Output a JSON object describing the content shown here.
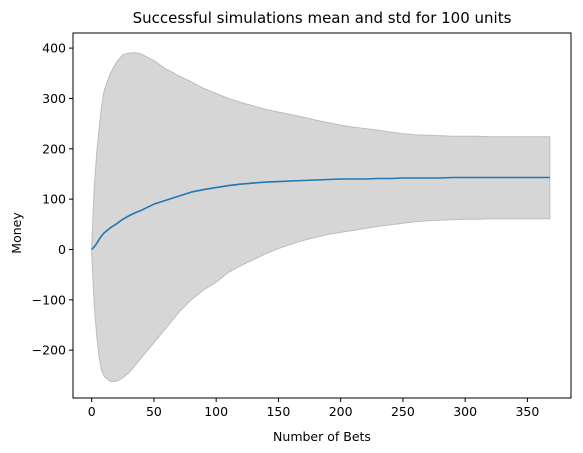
{
  "chart_data": {
    "type": "area",
    "title": "Successful simulations mean and std for 100 units",
    "xlabel": "Number of Bets",
    "ylabel": "Money",
    "xlim": [
      -15,
      385
    ],
    "ylim": [
      -295,
      430
    ],
    "xticks": [
      0,
      50,
      100,
      150,
      200,
      250,
      300,
      350
    ],
    "yticks": [
      -200,
      -100,
      0,
      100,
      200,
      300,
      400
    ],
    "x": [
      0,
      2,
      4,
      6,
      8,
      10,
      15,
      20,
      25,
      30,
      35,
      40,
      50,
      60,
      70,
      80,
      90,
      100,
      110,
      120,
      130,
      140,
      150,
      160,
      170,
      180,
      190,
      200,
      210,
      220,
      230,
      240,
      250,
      260,
      270,
      280,
      290,
      300,
      310,
      320,
      330,
      340,
      350,
      360,
      368
    ],
    "series": [
      {
        "role": "mean",
        "values": [
          0,
          5,
          12,
          20,
          27,
          33,
          43,
          51,
          60,
          67,
          73,
          78,
          90,
          98,
          106,
          114,
          119,
          123,
          127,
          130,
          132,
          134,
          135,
          136,
          137,
          138,
          139,
          140,
          140,
          140,
          141,
          141,
          142,
          142,
          142,
          142,
          143,
          143,
          143,
          143,
          143,
          143,
          143,
          143,
          143
        ],
        "color": "#1f77b4"
      }
    ],
    "band": {
      "role": "std",
      "upper": [
        5,
        120,
        190,
        240,
        285,
        315,
        350,
        372,
        387,
        390,
        391,
        388,
        375,
        358,
        345,
        333,
        320,
        310,
        300,
        292,
        285,
        278,
        273,
        268,
        263,
        257,
        252,
        247,
        243,
        240,
        237,
        233,
        230,
        228,
        227,
        226,
        225,
        225,
        225,
        224,
        224,
        224,
        224,
        224,
        224
      ],
      "lower": [
        -5,
        -110,
        -170,
        -215,
        -240,
        -252,
        -262,
        -262,
        -255,
        -245,
        -230,
        -215,
        -185,
        -155,
        -125,
        -100,
        -80,
        -65,
        -45,
        -32,
        -20,
        -8,
        2,
        10,
        18,
        24,
        30,
        34,
        38,
        42,
        46,
        49,
        52,
        55,
        57,
        58,
        59,
        60,
        60,
        61,
        61,
        61,
        61,
        61,
        61
      ],
      "color": "#d6d6d6",
      "edge_color": "#bdbdbd"
    },
    "grid": false,
    "legend": "none"
  }
}
